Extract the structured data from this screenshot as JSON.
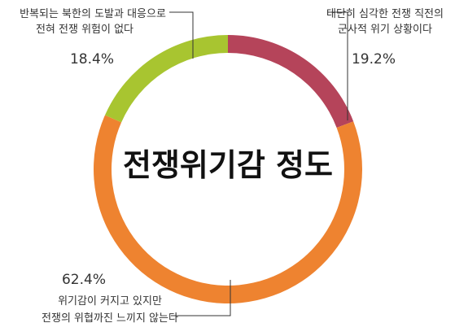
{
  "chart_data": {
    "type": "pie",
    "title": "전쟁위기감 정도",
    "slices": [
      {
        "label_lines": [
          "대단히 심각한 전쟁 직전의",
          "군사적 위기 상황이다"
        ],
        "value_label": "19.2%",
        "value": 19.2,
        "color": "#b5445a"
      },
      {
        "label_lines": [
          "위기감이 커지고 있지만",
          "전쟁의 위협까진 느끼지 않는다"
        ],
        "value_label": "62.4%",
        "value": 62.4,
        "color": "#ee8330"
      },
      {
        "label_lines": [
          "반복되는 북한의 도발과 대응으로",
          "전혀 전쟁 위험이 없다"
        ],
        "value_label": "18.4%",
        "value": 18.4,
        "color": "#a8c530"
      }
    ]
  }
}
